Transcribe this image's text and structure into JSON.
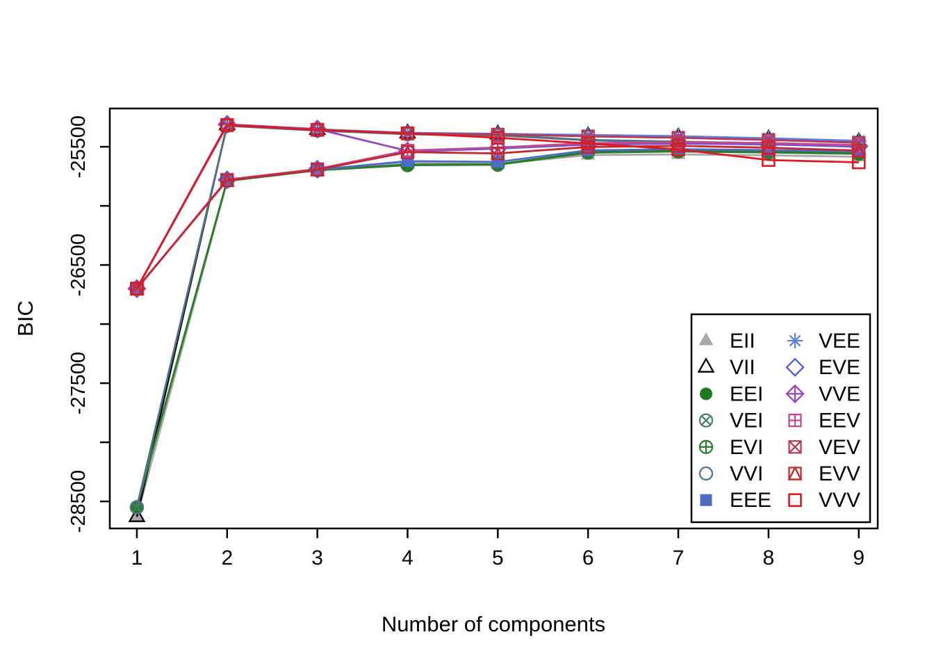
{
  "figure": {
    "background": "#FFFFFF",
    "xlabel": "Number of components",
    "ylabel": "BIC"
  },
  "chart_data": {
    "type": "line",
    "title": "",
    "xlabel": "Number of components",
    "ylabel": "BIC",
    "x": [
      1,
      2,
      3,
      4,
      5,
      6,
      7,
      8,
      9
    ],
    "x_tick_labels": [
      "1",
      "2",
      "3",
      "4",
      "5",
      "6",
      "7",
      "8",
      "9"
    ],
    "xlim": [
      0.7,
      9.21
    ],
    "ylim": [
      -28729,
      -25176
    ],
    "y_ticks": [
      -25500,
      -26000,
      -26500,
      -27000,
      -27500,
      -28000,
      -28500
    ],
    "y_labeled_ticks": [
      -25500,
      -26500,
      -27500,
      -28500
    ],
    "y_tick_label_strings": [
      "-25500",
      "-26500",
      "-27500",
      "-28500"
    ],
    "grid": false,
    "legend_position": "bottom-right",
    "series": [
      {
        "name": "EII",
        "marker": "triangle-filled",
        "color": "#A8A8A8",
        "values": [
          -28630,
          -25790,
          -25700,
          -25640,
          -25645,
          -25570,
          -25565,
          -25572,
          -25585
        ]
      },
      {
        "name": "VII",
        "marker": "triangle-open",
        "color": "#000000",
        "values": [
          -28630,
          -25315,
          -25355,
          -25385,
          -25393,
          -25408,
          -25418,
          -25435,
          -25458
        ]
      },
      {
        "name": "EEI",
        "marker": "circle-filled",
        "color": "#1E7A1E",
        "values": [
          -28550,
          -25786,
          -25696,
          -25652,
          -25648,
          -25545,
          -25535,
          -25542,
          -25555
        ]
      },
      {
        "name": "VEI",
        "marker": "circle-x",
        "color": "#45806E",
        "values": [
          -28550,
          -25320,
          -25360,
          -25391,
          -25400,
          -25442,
          -25456,
          -25472,
          -25494
        ]
      },
      {
        "name": "EVI",
        "marker": "circle-plus",
        "color": "#2E7D2E",
        "values": [
          -28550,
          -25789,
          -25699,
          -25656,
          -25652,
          -25550,
          -25540,
          -25548,
          -25560
        ]
      },
      {
        "name": "VVI",
        "marker": "circle-open",
        "color": "#53708E",
        "values": [
          -28550,
          -25323,
          -25363,
          -25394,
          -25404,
          -25446,
          -25462,
          -25478,
          -25500
        ]
      },
      {
        "name": "EEE",
        "marker": "square-filled",
        "color": "#4E6BC6",
        "values": [
          -26700,
          -25783,
          -25693,
          -25622,
          -25628,
          -25530,
          -25520,
          -25528,
          -25540
        ]
      },
      {
        "name": "VEE",
        "marker": "asterisk",
        "color": "#5F7EE6",
        "values": [
          -26700,
          -25312,
          -25352,
          -25382,
          -25390,
          -25400,
          -25410,
          -25428,
          -25450
        ]
      },
      {
        "name": "EVE",
        "marker": "diamond-open",
        "color": "#5757DC",
        "values": [
          -26700,
          -25780,
          -25690,
          -25540,
          -25515,
          -25482,
          -25472,
          -25480,
          -25498
        ]
      },
      {
        "name": "VVE",
        "marker": "diamond-plus",
        "color": "#9547BE",
        "values": [
          -26700,
          -25310,
          -25350,
          -25535,
          -25510,
          -25476,
          -25466,
          -25474,
          -25492
        ]
      },
      {
        "name": "EEV",
        "marker": "square-plus",
        "color": "#BF4B93",
        "values": [
          -26700,
          -25778,
          -25688,
          -25532,
          -25506,
          -25470,
          -25460,
          -25468,
          -25486
        ]
      },
      {
        "name": "VEV",
        "marker": "square-x",
        "color": "#B73A54",
        "values": [
          -26700,
          -25318,
          -25358,
          -25388,
          -25396,
          -25412,
          -25424,
          -25442,
          -25466
        ]
      },
      {
        "name": "EVV",
        "marker": "square-triangle",
        "color": "#C2282E",
        "values": [
          -26700,
          -25784,
          -25694,
          -25545,
          -25556,
          -25502,
          -25492,
          -25508,
          -25532
        ]
      },
      {
        "name": "VVV",
        "marker": "square-open",
        "color": "#DB1B21",
        "values": [
          -26700,
          -25316,
          -25356,
          -25386,
          -25424,
          -25472,
          -25522,
          -25612,
          -25632
        ]
      }
    ],
    "legend": {
      "column1": [
        "EII",
        "VII",
        "EEI",
        "VEI",
        "EVI",
        "VVI",
        "EEE"
      ],
      "column2": [
        "VEE",
        "EVE",
        "VVE",
        "EEV",
        "VEV",
        "EVV",
        "VVV"
      ]
    }
  }
}
